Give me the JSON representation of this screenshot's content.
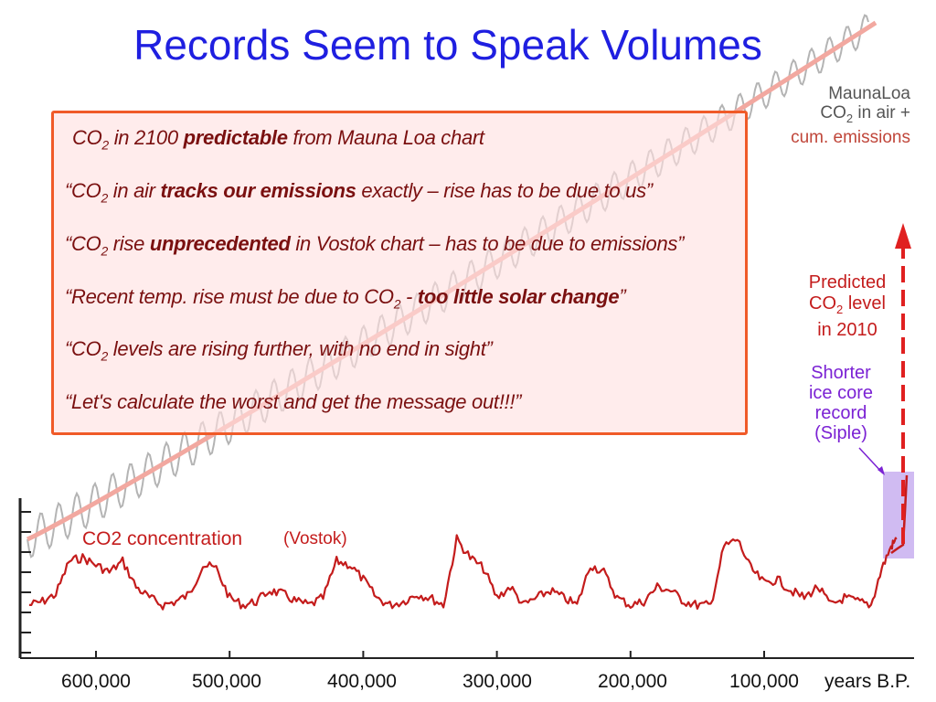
{
  "title": "Records Seem to Speak Volumes",
  "maunaloa_label": {
    "line1": "MaunaLoa",
    "line2a": "CO",
    "line2sub": "2",
    "line2b": " in air +",
    "line3": "cum. emissions"
  },
  "quotes": [
    {
      "a": "CO",
      "sub": "2",
      "b": " in 2100 ",
      "bold": "predictable",
      "c": " from Mauna Loa chart"
    },
    {
      "a": "“CO",
      "sub": "2",
      "b": " in air ",
      "bold": "tracks our emissions",
      "c": " exactly – rise has to be due to us”"
    },
    {
      "a": "“CO",
      "sub": "2",
      "b": " rise ",
      "bold": "unprecedented",
      "c": " in Vostok chart – has to be due to emissions”"
    },
    {
      "a": "“Recent temp. rise must be due to CO",
      "sub": "2",
      "b": " - ",
      "bold": "too little solar change",
      "c": "”"
    },
    {
      "a": "“CO",
      "sub": "2",
      "b": " levels are rising  further, with no end in sight”",
      "bold": "",
      "c": ""
    },
    {
      "a": "“Let's calculate the worst and get the message out!!!”",
      "sub": "",
      "b": "",
      "bold": "",
      "c": ""
    }
  ],
  "predicted_label": {
    "line1": "Predicted",
    "line2a": "CO",
    "line2sub": "2",
    "line2b": " level",
    "line3": "in 2010"
  },
  "siple_label": {
    "line1": "Shorter",
    "line2": "ice core",
    "line3": "record",
    "line4": "(Siple)"
  },
  "series_label": "CO2 concentration",
  "series_source": "(Vostok)",
  "colors": {
    "title": "#1f1fe0",
    "vostok_line": "#c41c1c",
    "maunaloa_trend": "#f2a8a0",
    "maunaloa_cycle": "#b4b4b4",
    "predicted_arrow": "#e02020",
    "siple_box": "#c8aff0",
    "box_border": "#f05a28"
  },
  "chart_data": {
    "type": "line",
    "xlabel": "years B.P.",
    "x_ticks": [
      "600,000",
      "500,000",
      "400,000",
      "300,000",
      "200,000",
      "100,000"
    ],
    "xlim": [
      650000,
      0
    ],
    "series": [
      {
        "name": "CO2 concentration",
        "x": [
          650000,
          640000,
          630000,
          620000,
          610000,
          600000,
          590000,
          580000,
          570000,
          560000,
          550000,
          540000,
          530000,
          520000,
          510000,
          500000,
          490000,
          480000,
          470000,
          460000,
          450000,
          440000,
          430000,
          420000,
          410000,
          400000,
          390000,
          380000,
          370000,
          360000,
          350000,
          340000,
          330000,
          320000,
          310000,
          300000,
          290000,
          280000,
          270000,
          260000,
          250000,
          240000,
          230000,
          220000,
          210000,
          200000,
          190000,
          180000,
          170000,
          160000,
          150000,
          140000,
          130000,
          120000,
          110000,
          100000,
          90000,
          80000,
          70000,
          60000,
          50000,
          40000,
          30000,
          20000,
          12000,
          5000,
          1000
        ],
        "y": [
          190,
          195,
          205,
          250,
          255,
          245,
          235,
          250,
          215,
          200,
          190,
          195,
          205,
          245,
          240,
          200,
          190,
          195,
          210,
          205,
          195,
          190,
          200,
          250,
          245,
          225,
          200,
          190,
          195,
          205,
          200,
          190,
          280,
          255,
          240,
          200,
          215,
          190,
          200,
          210,
          200,
          190,
          245,
          235,
          200,
          190,
          195,
          215,
          210,
          195,
          190,
          190,
          270,
          280,
          240,
          220,
          225,
          210,
          200,
          215,
          190,
          200,
          195,
          190,
          240,
          270,
          280
        ]
      },
      {
        "name": "MaunaLoa CO2 in air + cum. emissions",
        "note": "seasonal sawtooth rising steeply"
      },
      {
        "name": "Shorter ice core record (Siple)"
      }
    ]
  }
}
